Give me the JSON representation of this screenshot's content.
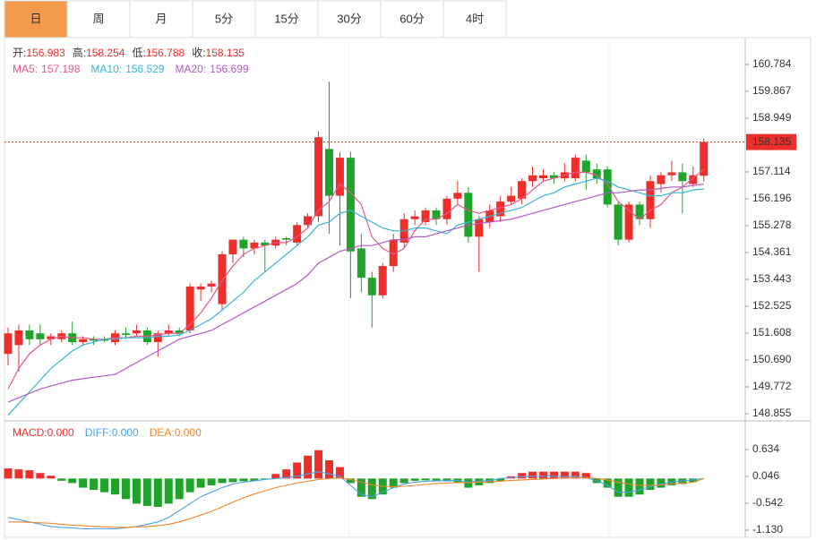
{
  "tabs": [
    "日",
    "周",
    "月",
    "5分",
    "15分",
    "30分",
    "60分",
    "4时"
  ],
  "active_tab": 0,
  "chart_data": [
    {
      "type": "candlestick",
      "info_labels": [
        "开:",
        "高:",
        "低:",
        "收:"
      ],
      "up_color": "#ec2f2a",
      "down_color": "#1fa32a",
      "open": [
        150.9,
        151.2,
        151.7,
        151.6,
        151.4,
        151.4,
        151.6,
        151.3,
        151.4,
        151.4,
        151.3,
        151.6,
        151.6,
        151.7,
        151.3,
        151.6,
        151.7,
        151.7,
        153.1,
        153.2,
        152.6,
        154.3,
        154.8,
        154.5,
        154.7,
        154.6,
        154.85,
        154.7,
        155.3,
        155.6,
        157.9,
        156.3,
        157.6,
        154.5,
        153.5,
        152.9,
        153.9,
        154.7,
        155.5,
        155.4,
        155.8,
        155.5,
        156.2,
        156.4,
        154.9,
        155.4,
        155.6,
        156.1,
        156.2,
        156.8,
        156.9,
        157.0,
        156.9,
        156.9,
        157.5,
        157.2,
        157.2,
        156.0,
        154.8,
        156.0,
        155.5,
        156.7,
        157.0,
        157.1,
        156.7,
        156.983
      ],
      "high": [
        151.8,
        151.9,
        151.9,
        151.9,
        151.6,
        151.7,
        152.0,
        151.5,
        151.5,
        151.5,
        151.7,
        151.8,
        151.9,
        151.8,
        151.7,
        151.9,
        151.8,
        153.3,
        153.3,
        153.4,
        154.4,
        154.8,
        154.9,
        154.8,
        154.8,
        154.9,
        154.9,
        155.4,
        155.7,
        158.5,
        160.2,
        157.8,
        157.8,
        155.0,
        153.7,
        154.0,
        155.0,
        155.7,
        155.8,
        155.9,
        155.9,
        156.3,
        156.8,
        156.6,
        155.6,
        156.0,
        156.3,
        156.6,
        156.9,
        157.3,
        157.2,
        157.1,
        157.4,
        157.7,
        157.7,
        157.4,
        157.3,
        156.1,
        156.1,
        156.1,
        157.0,
        157.1,
        157.5,
        157.4,
        157.3,
        158.254
      ],
      "low": [
        150.5,
        150.3,
        151.2,
        151.2,
        151.2,
        151.3,
        151.2,
        151.2,
        151.2,
        151.3,
        151.2,
        151.4,
        151.5,
        151.2,
        150.8,
        151.5,
        151.5,
        151.6,
        152.7,
        153.0,
        152.4,
        154.0,
        154.2,
        154.3,
        153.7,
        154.5,
        154.6,
        154.6,
        155.2,
        155.4,
        155.0,
        154.6,
        152.8,
        153.0,
        151.8,
        152.8,
        153.7,
        154.5,
        155.3,
        155.3,
        155.3,
        155.3,
        156.0,
        154.7,
        153.7,
        155.2,
        155.4,
        156.0,
        156.0,
        156.6,
        156.8,
        156.7,
        156.8,
        156.8,
        156.5,
        156.7,
        155.9,
        154.6,
        154.7,
        155.3,
        155.2,
        156.4,
        156.8,
        155.7,
        156.6,
        156.788
      ],
      "close": [
        151.6,
        151.7,
        151.4,
        151.4,
        151.5,
        151.6,
        151.3,
        151.4,
        151.35,
        151.35,
        151.6,
        151.55,
        151.7,
        151.3,
        151.6,
        151.7,
        151.6,
        153.2,
        153.2,
        153.3,
        154.3,
        154.8,
        154.5,
        154.7,
        154.6,
        154.8,
        154.8,
        155.3,
        155.6,
        158.3,
        156.3,
        157.6,
        154.4,
        153.5,
        152.9,
        153.9,
        154.8,
        155.5,
        155.6,
        155.8,
        155.5,
        156.2,
        156.4,
        154.9,
        155.5,
        155.8,
        156.1,
        156.3,
        156.8,
        157.0,
        157.0,
        156.9,
        157.1,
        157.6,
        157.1,
        156.9,
        156.0,
        154.8,
        156.0,
        155.5,
        156.8,
        157.0,
        157.1,
        156.8,
        157.0,
        158.135
      ],
      "series": [
        {
          "name": "MA5:",
          "color": "#e8578a",
          "values": [
            149.7,
            150.4,
            150.9,
            151.2,
            151.4,
            151.5,
            151.45,
            151.45,
            151.4,
            151.4,
            151.45,
            151.45,
            151.5,
            151.5,
            151.55,
            151.6,
            151.6,
            151.9,
            152.3,
            152.8,
            153.4,
            153.9,
            154.3,
            154.5,
            154.6,
            154.7,
            154.7,
            154.9,
            155.2,
            155.8,
            156.1,
            156.7,
            156.4,
            156.0,
            154.9,
            154.5,
            154.3,
            154.5,
            155.1,
            155.5,
            155.5,
            155.7,
            156.0,
            155.8,
            155.7,
            155.8,
            155.9,
            156.0,
            156.2,
            156.5,
            156.8,
            156.9,
            157.0,
            157.1,
            157.1,
            157.0,
            156.7,
            156.1,
            155.8,
            155.5,
            155.8,
            156.0,
            156.4,
            156.6,
            156.9,
            157.198
          ]
        },
        {
          "name": "MA10:",
          "color": "#35b6d8",
          "values": [
            148.8,
            149.2,
            149.6,
            150.0,
            150.4,
            150.7,
            151.0,
            151.2,
            151.3,
            151.4,
            151.4,
            151.45,
            151.45,
            151.45,
            151.5,
            151.5,
            151.55,
            151.7,
            151.9,
            152.1,
            152.4,
            152.7,
            153.0,
            153.4,
            153.7,
            154.0,
            154.3,
            154.6,
            154.9,
            155.3,
            155.4,
            155.7,
            155.8,
            155.6,
            155.4,
            155.2,
            155.1,
            155.1,
            155.2,
            155.2,
            155.1,
            155.0,
            155.3,
            155.4,
            155.5,
            155.6,
            155.7,
            155.8,
            155.9,
            156.1,
            156.3,
            156.4,
            156.6,
            156.7,
            156.8,
            156.9,
            156.8,
            156.6,
            156.5,
            156.4,
            156.3,
            156.3,
            156.4,
            156.4,
            156.5,
            156.529
          ]
        },
        {
          "name": "MA20:",
          "color": "#b25ac6",
          "values": [
            149.25,
            149.4,
            149.55,
            149.7,
            149.8,
            149.9,
            150.0,
            150.05,
            150.1,
            150.15,
            150.2,
            150.4,
            150.6,
            150.8,
            151.0,
            151.2,
            151.4,
            151.5,
            151.6,
            151.7,
            151.9,
            152.1,
            152.3,
            152.5,
            152.7,
            152.9,
            153.1,
            153.3,
            153.6,
            154.0,
            154.2,
            154.4,
            154.5,
            154.6,
            154.6,
            154.7,
            154.8,
            154.8,
            154.9,
            154.9,
            155.0,
            155.1,
            155.2,
            155.3,
            155.35,
            155.4,
            155.45,
            155.5,
            155.6,
            155.7,
            155.8,
            155.9,
            156.0,
            156.1,
            156.2,
            156.3,
            156.4,
            156.4,
            156.45,
            156.5,
            156.5,
            156.55,
            156.6,
            156.6,
            156.65,
            156.699
          ]
        }
      ],
      "ylim": [
        148.61,
        161.61
      ],
      "yticks": [
        160.784,
        159.867,
        158.949,
        157.114,
        156.196,
        155.278,
        154.361,
        153.443,
        152.525,
        151.608,
        {
          "value": 150.69,
          "label": "150.690"
        },
        149.772,
        148.855
      ]
    },
    {
      "type": "macd",
      "legend": [
        "MACD:",
        "DIFF:",
        "DEA:"
      ],
      "legend_values": [
        "0.000",
        "0.000",
        "0.000"
      ],
      "legend_colors": [
        "#ec2f2a",
        "#4aa2e6",
        "#f0862a"
      ],
      "values": [
        0.22,
        0.2,
        0.18,
        0.12,
        0.06,
        -0.05,
        -0.1,
        -0.2,
        -0.25,
        -0.3,
        -0.35,
        -0.45,
        -0.55,
        -0.6,
        -0.62,
        -0.55,
        -0.45,
        -0.3,
        -0.2,
        -0.15,
        -0.1,
        -0.08,
        -0.06,
        -0.05,
        -0.02,
        0.1,
        0.2,
        0.35,
        0.5,
        0.62,
        0.4,
        0.25,
        -0.1,
        -0.4,
        -0.45,
        -0.35,
        -0.2,
        -0.1,
        -0.05,
        -0.04,
        -0.05,
        -0.06,
        -0.08,
        -0.2,
        -0.15,
        -0.1,
        -0.05,
        0.05,
        0.12,
        0.15,
        0.15,
        0.15,
        0.15,
        0.15,
        0.12,
        -0.1,
        -0.2,
        -0.4,
        -0.4,
        -0.35,
        -0.25,
        -0.2,
        -0.15,
        -0.12,
        -0.08,
        0
      ],
      "series": [
        {
          "name": "DIFF",
          "color": "#4aa2e6",
          "values": [
            -0.85,
            -0.9,
            -0.95,
            -1.0,
            -1.05,
            -1.07,
            -1.08,
            -1.1,
            -1.1,
            -1.1,
            -1.1,
            -1.08,
            -1.05,
            -1.0,
            -0.95,
            -0.85,
            -0.7,
            -0.55,
            -0.4,
            -0.3,
            -0.2,
            -0.12,
            -0.08,
            -0.05,
            -0.02,
            0.0,
            0.02,
            0.05,
            0.1,
            0.15,
            0.1,
            0.05,
            -0.15,
            -0.35,
            -0.4,
            -0.3,
            -0.2,
            -0.12,
            -0.08,
            -0.06,
            -0.05,
            -0.05,
            -0.04,
            -0.08,
            -0.06,
            -0.04,
            0.0,
            0.02,
            0.04,
            0.05,
            0.05,
            0.05,
            0.04,
            0.05,
            0.02,
            -0.05,
            -0.15,
            -0.3,
            -0.3,
            -0.25,
            -0.18,
            -0.12,
            -0.08,
            -0.05,
            -0.03,
            0.0
          ]
        },
        {
          "name": "DEA",
          "color": "#f0862a",
          "values": [
            -0.95,
            -0.95,
            -0.96,
            -0.97,
            -0.98,
            -1.0,
            -1.02,
            -1.03,
            -1.05,
            -1.06,
            -1.07,
            -1.07,
            -1.06,
            -1.05,
            -1.03,
            -1.0,
            -0.95,
            -0.88,
            -0.8,
            -0.72,
            -0.62,
            -0.52,
            -0.42,
            -0.34,
            -0.27,
            -0.2,
            -0.15,
            -0.1,
            -0.06,
            -0.02,
            0.0,
            0.01,
            -0.02,
            -0.08,
            -0.14,
            -0.17,
            -0.18,
            -0.17,
            -0.15,
            -0.13,
            -0.11,
            -0.1,
            -0.09,
            -0.09,
            -0.08,
            -0.07,
            -0.06,
            -0.04,
            -0.03,
            -0.02,
            -0.01,
            0.0,
            0.01,
            0.02,
            0.02,
            0.0,
            -0.03,
            -0.08,
            -0.12,
            -0.15,
            -0.15,
            -0.14,
            -0.12,
            -0.1,
            -0.08,
            0.0
          ]
        }
      ],
      "up_color": "#ec2f2a",
      "down_color": "#1fa32a",
      "ylim": [
        -1.287,
        1.261
      ],
      "yticks": [
        0.634,
        0.046,
        -0.542,
        {
          "value": -1.13,
          "label": "-1.130"
        }
      ]
    }
  ]
}
